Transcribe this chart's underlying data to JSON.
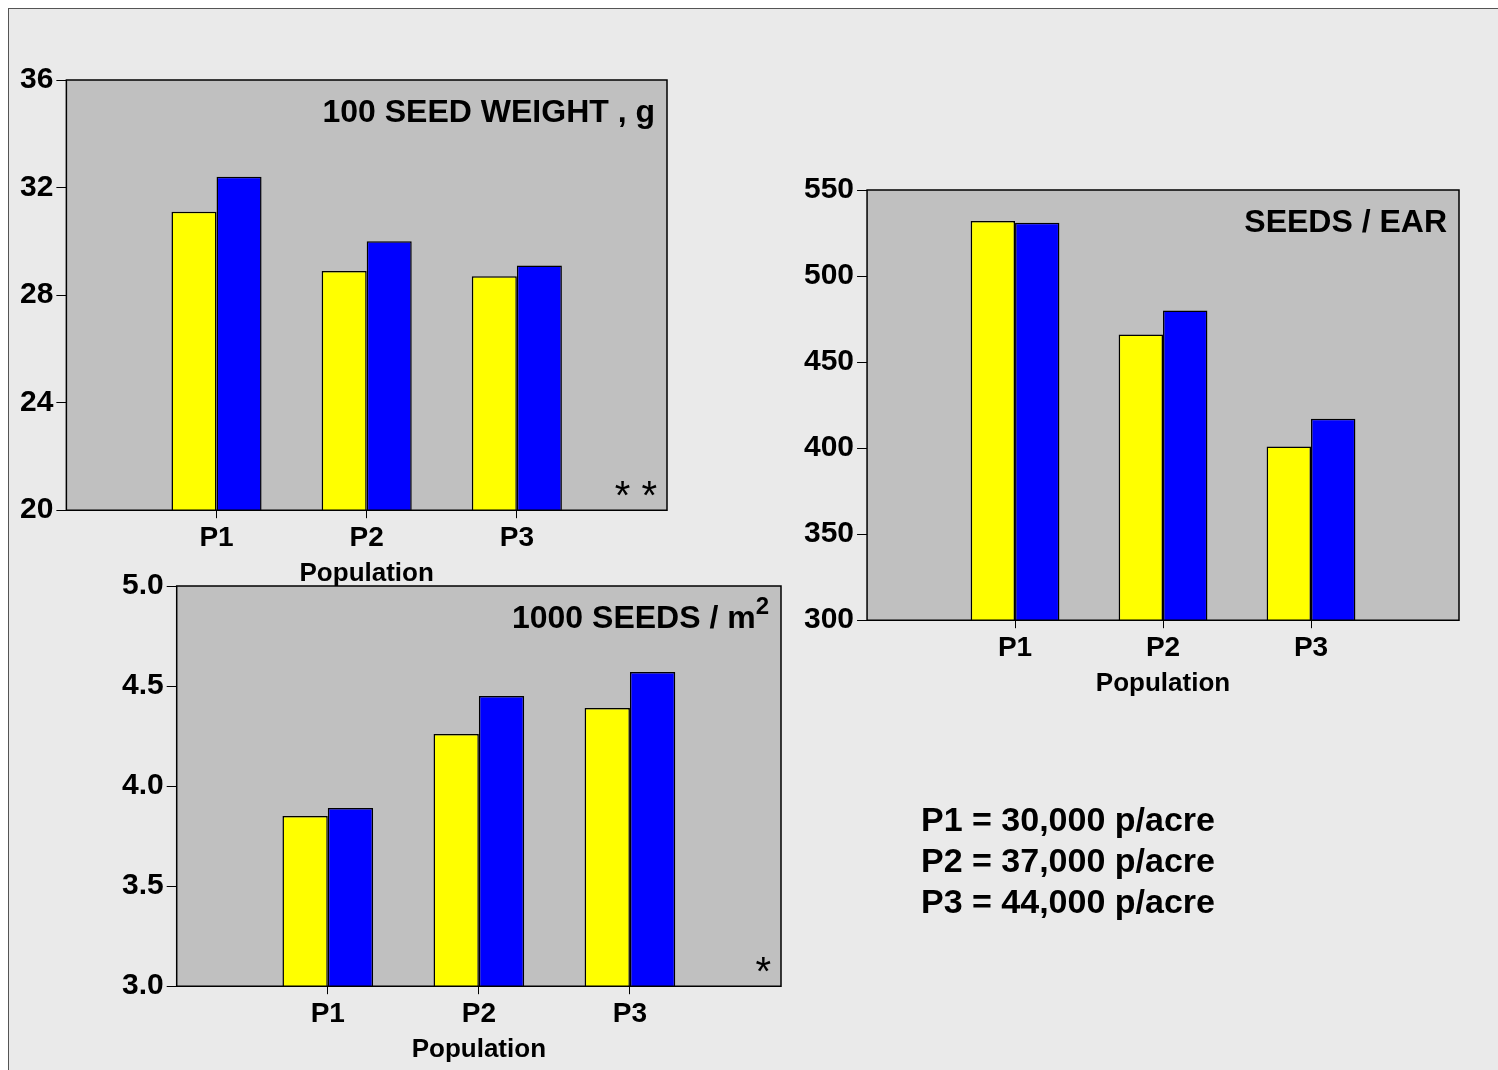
{
  "chart_data": [
    {
      "type": "bar",
      "title": "100 SEED WEIGHT , g",
      "xlabel": "Population",
      "categories": [
        "P1",
        "P2",
        "P3"
      ],
      "series": [
        {
          "color": "#ffff00",
          "values": [
            31.1,
            28.9,
            28.7
          ]
        },
        {
          "color": "#0000ff",
          "values": [
            32.4,
            30.0,
            29.1
          ]
        }
      ],
      "ylim": [
        20,
        36
      ],
      "yticks": [
        20,
        24,
        28,
        32,
        36
      ],
      "grid": false,
      "legend": false,
      "annotations": [
        "* *"
      ]
    },
    {
      "type": "bar",
      "title": "SEEDS / EAR",
      "xlabel": "Population",
      "categories": [
        "P1",
        "P2",
        "P3"
      ],
      "series": [
        {
          "color": "#ffff00",
          "values": [
            532,
            466,
            401
          ]
        },
        {
          "color": "#0000ff",
          "values": [
            531,
            480,
            417
          ]
        }
      ],
      "ylim": [
        300,
        550
      ],
      "yticks": [
        300,
        350,
        400,
        450,
        500,
        550
      ],
      "grid": false,
      "legend": false
    },
    {
      "type": "bar",
      "title": "1000 SEEDS / m$^{2}$",
      "xlabel": "Population",
      "categories": [
        "P1",
        "P2",
        "P3"
      ],
      "series": [
        {
          "color": "#ffff00",
          "values": [
            3.85,
            4.26,
            4.39
          ]
        },
        {
          "color": "#0000ff",
          "values": [
            3.89,
            4.45,
            4.57
          ]
        }
      ],
      "ylim": [
        3.0,
        5.0
      ],
      "yticks": [
        {
          "value": 3.0,
          "label": "3.0"
        },
        {
          "value": 3.5,
          "label": "3.5"
        },
        {
          "value": 4.0,
          "label": "4.0"
        },
        {
          "value": 4.5,
          "label": "4.5"
        },
        {
          "value": 5.0,
          "label": "5.0"
        }
      ],
      "grid": false,
      "legend": false,
      "annotations": [
        "*"
      ]
    },
    {
      "type": "other",
      "annotations": [
        "P1 = 30,000 p/acre",
        "P2 = 37,000 p/acre",
        "P3 = 44,000 p/acre"
      ]
    }
  ]
}
